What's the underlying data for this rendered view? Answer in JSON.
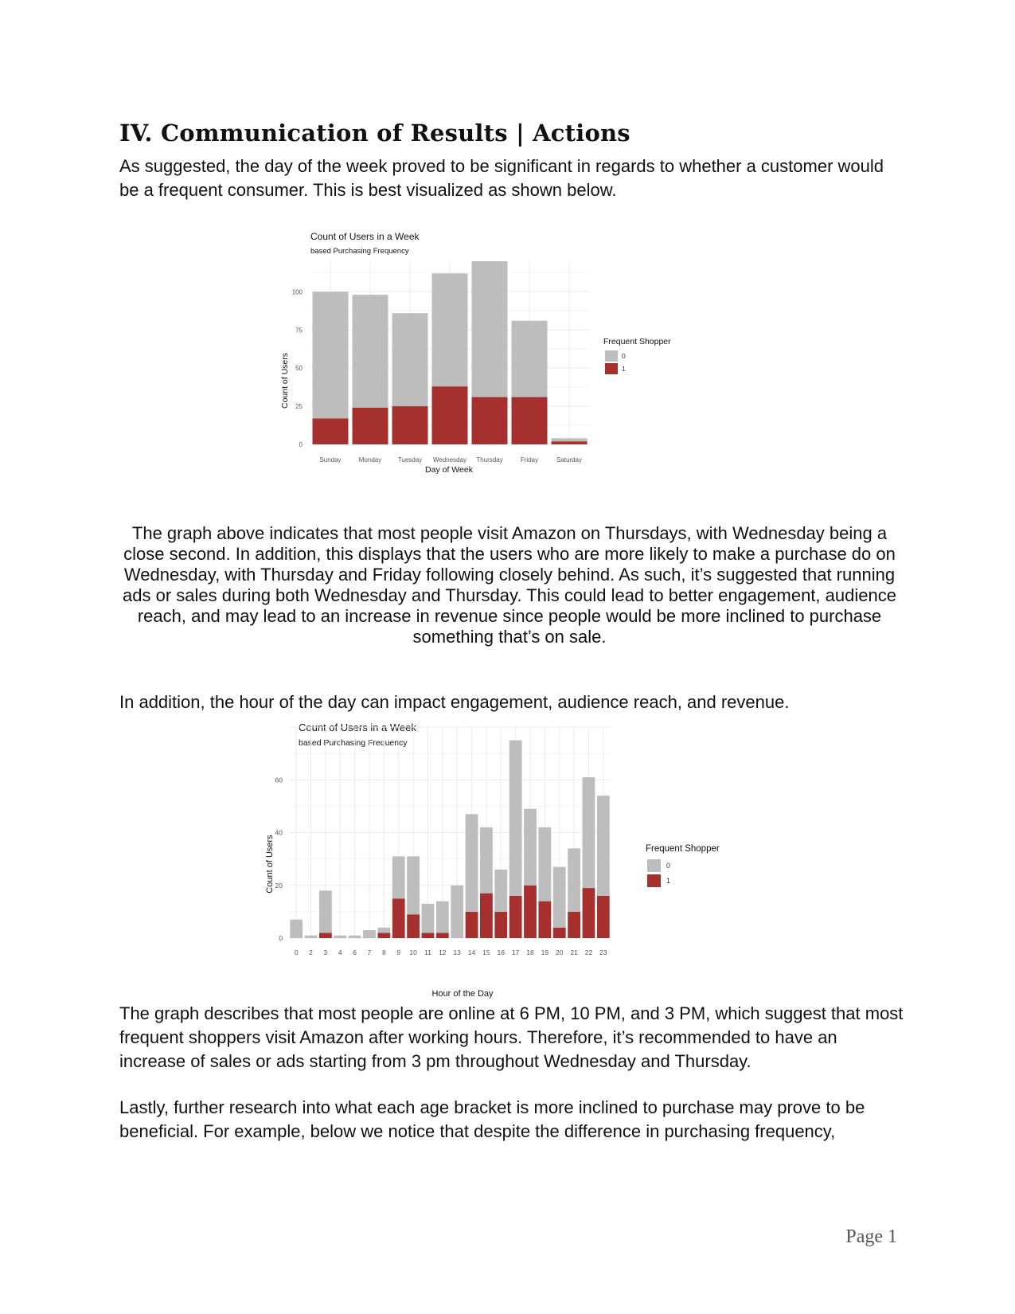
{
  "document": {
    "heading": "IV. Communication of Results | Actions",
    "para1": "As suggested, the day of the week proved to be significant in regards to whether a customer would be a frequent consumer. This is best visualized as shown below.",
    "para2": "The graph above indicates that most people visit Amazon on Thursdays, with Wednesday being a close second. In addition, this displays that the users who are more likely to make a purchase do on Wednesday, with Thursday and Friday following closely behind. As such, it’s suggested that running ads or sales during both Wednesday and Thursday. This could lead to better engagement, audience reach, and may lead to an increase in revenue since people would be more inclined to purchase something that’s on sale.",
    "para3": "In addition, the hour of the day can impact engagement, audience reach, and revenue.",
    "para4": "The graph describes that most people are online at 6 PM, 10 PM, and 3 PM, which suggest that most frequent shoppers visit Amazon after working hours. Therefore, it’s recommended to have an increase of sales or ads starting from 3 pm throughout Wednesday and Thursday.",
    "para5": "Lastly, further research into what each age bracket is more inclined to purchase may prove to be beneficial. For example, below we notice that despite the difference in purchasing frequency,",
    "page_number": "Page 1"
  },
  "colors": {
    "non_frequent": "#bdbdbd",
    "frequent": "#a5302d",
    "grid": "#ebebeb"
  },
  "chart_data": [
    {
      "type": "bar",
      "stacked": true,
      "title": "Count of Users in a Week",
      "subtitle": "based Purchasing Frequency",
      "xlabel": "Day of Week",
      "ylabel": "Count of Users",
      "categories": [
        "Sunday",
        "Monday",
        "Tuesday",
        "Wednesday",
        "Thursday",
        "Friday",
        "Saturday"
      ],
      "series": [
        {
          "name": "0",
          "values": [
            83,
            74,
            61,
            74,
            89,
            50,
            2
          ]
        },
        {
          "name": "1",
          "values": [
            17,
            24,
            25,
            38,
            31,
            31,
            2
          ]
        }
      ],
      "ylim": [
        0,
        120
      ],
      "yticks": [
        0,
        25,
        50,
        75,
        100
      ],
      "legend_title": "Frequent Shopper",
      "legend_position": "right",
      "grid": true
    },
    {
      "type": "bar",
      "stacked": true,
      "title": "Count of Users in a Week",
      "subtitle": "based Purchasing Frequency",
      "xlabel": "Hour of the Day",
      "ylabel": "Count of Users",
      "categories": [
        "0",
        "2",
        "3",
        "4",
        "6",
        "7",
        "8",
        "9",
        "10",
        "11",
        "12",
        "13",
        "14",
        "15",
        "16",
        "17",
        "18",
        "19",
        "20",
        "21",
        "22",
        "23"
      ],
      "series": [
        {
          "name": "0",
          "values": [
            7,
            1,
            16,
            1,
            1,
            3,
            2,
            16,
            22,
            11,
            12,
            20,
            37,
            25,
            16,
            59,
            29,
            28,
            23,
            24,
            42,
            38
          ]
        },
        {
          "name": "1",
          "values": [
            0,
            0,
            2,
            0,
            0,
            0,
            2,
            15,
            9,
            2,
            2,
            0,
            10,
            17,
            10,
            16,
            20,
            14,
            4,
            10,
            19,
            16
          ]
        }
      ],
      "ylim": [
        0,
        80
      ],
      "yticks": [
        0,
        20,
        40,
        60
      ],
      "legend_title": "Frequent Shopper",
      "legend_position": "right",
      "grid": true
    }
  ]
}
